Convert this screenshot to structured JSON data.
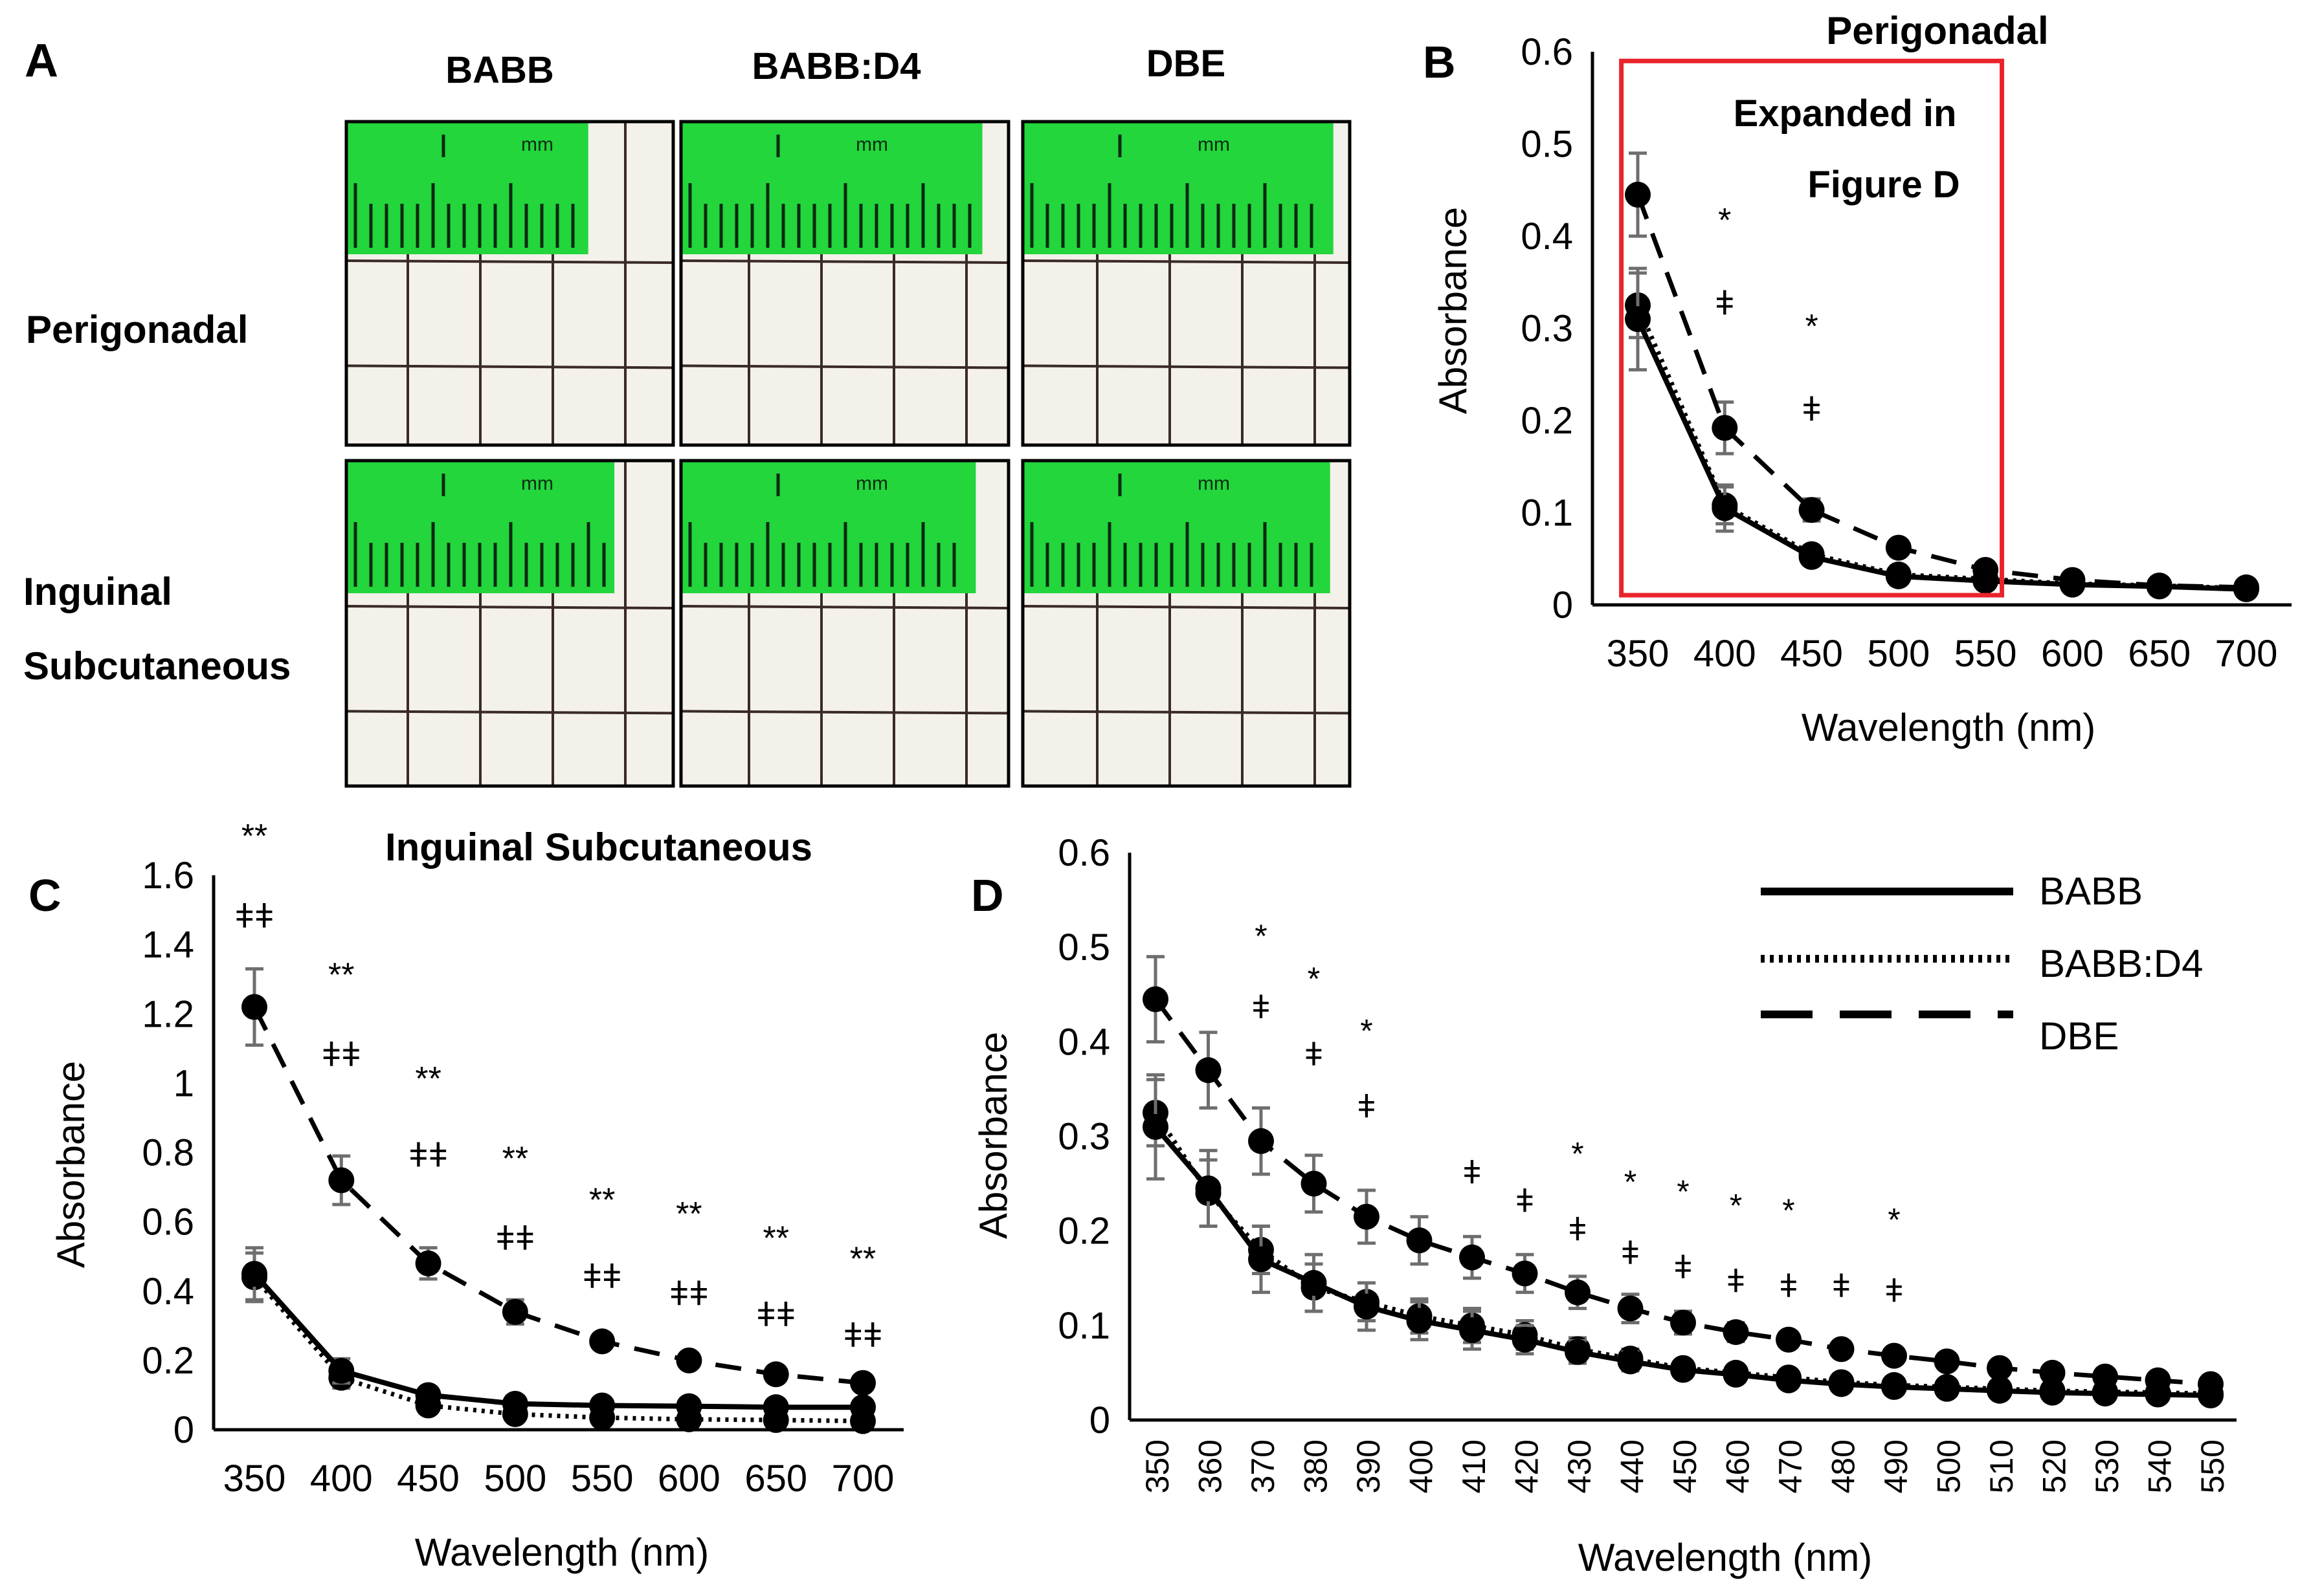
{
  "panelA": {
    "letter": "A",
    "columns": [
      "BABB",
      "BABB:D4",
      "DBE"
    ],
    "rows": [
      {
        "label_lines": [
          "Perigonadal"
        ]
      },
      {
        "label_lines": [
          "Inguinal",
          "Subcutaneous"
        ]
      }
    ],
    "ruler_mark": "mm"
  },
  "legend": {
    "entries": [
      {
        "name": "BABB",
        "style": "solid"
      },
      {
        "name": "BABB:D4",
        "style": "dotted"
      },
      {
        "name": "DBE",
        "style": "dashed"
      }
    ]
  },
  "colors": {
    "ink": "#000000",
    "errorbar": "#6e6e6e",
    "highlight": "#e8242b",
    "tissue_bg": "#f3f1ea",
    "ruler_green": "#22d63c"
  },
  "chart_data": [
    {
      "panel": "B",
      "type": "line",
      "title": "Perigonadal",
      "xlabel": "Wavelength (nm)",
      "ylabel": "Absorbance",
      "x": [
        350,
        400,
        450,
        500,
        550,
        600,
        650,
        700
      ],
      "xlim": [
        350,
        700
      ],
      "ylim": [
        0,
        0.6
      ],
      "yticks": [
        0,
        0.1,
        0.2,
        0.3,
        0.4,
        0.5,
        0.6
      ],
      "ytick_labels": [
        "0",
        "0.1",
        "0.2",
        "0.3",
        "0.4",
        "0.5",
        "0.6"
      ],
      "series": [
        {
          "name": "BABB",
          "style": "solid",
          "values": [
            0.31,
            0.105,
            0.052,
            0.031,
            0.026,
            0.022,
            0.02,
            0.017
          ],
          "errors": [
            0.055,
            0.025,
            0.008,
            0.005,
            0.004,
            0.003,
            0.003,
            0.003
          ]
        },
        {
          "name": "BABB:D4",
          "style": "dotted",
          "values": [
            0.325,
            0.108,
            0.055,
            0.033,
            0.028,
            0.023,
            0.021,
            0.018
          ],
          "errors": [
            0.035,
            0.02,
            0.006,
            0.005,
            0.004,
            0.003,
            0.003,
            0.003
          ]
        },
        {
          "name": "DBE",
          "style": "dashed",
          "values": [
            0.445,
            0.192,
            0.103,
            0.062,
            0.038,
            0.027,
            0.021,
            0.019
          ],
          "errors": [
            0.045,
            0.028,
            0.012,
            0.006,
            0.004,
            0.003,
            0.003,
            0.003
          ]
        }
      ],
      "annotations": [
        {
          "x": 400,
          "y": 0.405,
          "text": "*"
        },
        {
          "x": 400,
          "y": 0.315,
          "text": "ǂ"
        },
        {
          "x": 450,
          "y": 0.29,
          "text": "*"
        },
        {
          "x": 450,
          "y": 0.2,
          "text": "ǂ"
        }
      ],
      "highlight_box": {
        "x_range": [
          348,
          552
        ],
        "y_range": [
          0,
          0.59
        ],
        "label_lines": [
          "Expanded in",
          "Figure D"
        ]
      }
    },
    {
      "panel": "C",
      "type": "line",
      "title": "Inguinal Subcutaneous",
      "xlabel": "Wavelength (nm)",
      "ylabel": "Absorbance",
      "x": [
        350,
        400,
        450,
        500,
        550,
        600,
        650,
        700
      ],
      "xlim": [
        350,
        700
      ],
      "ylim": [
        0,
        1.6
      ],
      "yticks": [
        0,
        0.2,
        0.4,
        0.6,
        0.8,
        1,
        1.2,
        1.4,
        1.6
      ],
      "ytick_labels": [
        "0",
        "0.2",
        "0.4",
        "0.6",
        "0.8",
        "1",
        "1.2",
        "1.4",
        "1.6"
      ],
      "series": [
        {
          "name": "BABB",
          "style": "solid",
          "values": [
            0.45,
            0.17,
            0.1,
            0.075,
            0.07,
            0.068,
            0.065,
            0.065
          ],
          "errors": [
            0.075,
            0.035,
            0.02,
            0.015,
            0.012,
            0.01,
            0.01,
            0.01
          ]
        },
        {
          "name": "BABB:D4",
          "style": "dotted",
          "values": [
            0.44,
            0.15,
            0.07,
            0.045,
            0.035,
            0.03,
            0.028,
            0.025
          ],
          "errors": [
            0.07,
            0.03,
            0.015,
            0.012,
            0.01,
            0.01,
            0.01,
            0.01
          ]
        },
        {
          "name": "DBE",
          "style": "dashed",
          "values": [
            1.22,
            0.72,
            0.48,
            0.34,
            0.255,
            0.2,
            0.16,
            0.135
          ],
          "errors": [
            0.11,
            0.07,
            0.045,
            0.035,
            0.02,
            0.015,
            0.012,
            0.012
          ]
        }
      ],
      "annotations": [
        {
          "x": 350,
          "y": 1.68,
          "text": "**"
        },
        {
          "x": 350,
          "y": 1.45,
          "text": "ǂǂ"
        },
        {
          "x": 400,
          "y": 1.28,
          "text": "**"
        },
        {
          "x": 400,
          "y": 1.05,
          "text": "ǂǂ"
        },
        {
          "x": 450,
          "y": 0.98,
          "text": "**"
        },
        {
          "x": 450,
          "y": 0.76,
          "text": "ǂǂ"
        },
        {
          "x": 500,
          "y": 0.75,
          "text": "**"
        },
        {
          "x": 500,
          "y": 0.52,
          "text": "ǂǂ"
        },
        {
          "x": 550,
          "y": 0.63,
          "text": "**"
        },
        {
          "x": 550,
          "y": 0.41,
          "text": "ǂǂ"
        },
        {
          "x": 600,
          "y": 0.59,
          "text": "**"
        },
        {
          "x": 600,
          "y": 0.36,
          "text": "ǂǂ"
        },
        {
          "x": 650,
          "y": 0.52,
          "text": "**"
        },
        {
          "x": 650,
          "y": 0.3,
          "text": "ǂǂ"
        },
        {
          "x": 700,
          "y": 0.46,
          "text": "**"
        },
        {
          "x": 700,
          "y": 0.24,
          "text": "ǂǂ"
        }
      ]
    },
    {
      "panel": "D",
      "type": "line",
      "title": "",
      "xlabel": "Wavelength (nm)",
      "ylabel": "Absorbance",
      "x": [
        350,
        360,
        370,
        380,
        390,
        400,
        410,
        420,
        430,
        440,
        450,
        460,
        470,
        480,
        490,
        500,
        510,
        520,
        530,
        540,
        550
      ],
      "xlim": [
        350,
        550
      ],
      "ylim": [
        0,
        0.6
      ],
      "yticks": [
        0,
        0.1,
        0.2,
        0.3,
        0.4,
        0.5,
        0.6
      ],
      "ytick_labels": [
        "0",
        "0.1",
        "0.2",
        "0.3",
        "0.4",
        "0.5",
        "0.6"
      ],
      "series": [
        {
          "name": "BABB",
          "style": "solid",
          "values": [
            0.31,
            0.245,
            0.17,
            0.145,
            0.12,
            0.105,
            0.095,
            0.085,
            0.072,
            0.062,
            0.053,
            0.048,
            0.042,
            0.038,
            0.035,
            0.033,
            0.031,
            0.029,
            0.028,
            0.027,
            0.026
          ],
          "errors": [
            0.055,
            0.04,
            0.035,
            0.03,
            0.025,
            0.02,
            0.02,
            0.015,
            0.012,
            0.01,
            0.008,
            0.007,
            0.006,
            0.005,
            0.005,
            0.005,
            0.004,
            0.004,
            0.004,
            0.003,
            0.003
          ]
        },
        {
          "name": "BABB:D4",
          "style": "dotted",
          "values": [
            0.325,
            0.24,
            0.18,
            0.14,
            0.125,
            0.11,
            0.1,
            0.09,
            0.075,
            0.065,
            0.055,
            0.05,
            0.045,
            0.04,
            0.037,
            0.035,
            0.033,
            0.031,
            0.03,
            0.029,
            0.028
          ],
          "errors": [
            0.035,
            0.035,
            0.025,
            0.025,
            0.02,
            0.018,
            0.018,
            0.015,
            0.012,
            0.01,
            0.008,
            0.007,
            0.006,
            0.005,
            0.005,
            0.005,
            0.004,
            0.004,
            0.004,
            0.003,
            0.003
          ]
        },
        {
          "name": "DBE",
          "style": "dashed",
          "values": [
            0.445,
            0.37,
            0.295,
            0.25,
            0.215,
            0.19,
            0.172,
            0.155,
            0.135,
            0.118,
            0.103,
            0.093,
            0.085,
            0.075,
            0.068,
            0.062,
            0.055,
            0.05,
            0.046,
            0.042,
            0.038
          ],
          "errors": [
            0.045,
            0.04,
            0.035,
            0.03,
            0.028,
            0.025,
            0.022,
            0.02,
            0.017,
            0.015,
            0.012,
            0.01,
            0.008,
            0.007,
            0.006,
            0.006,
            0.005,
            0.005,
            0.004,
            0.004,
            0.004
          ]
        }
      ],
      "annotations": [
        {
          "x": 370,
          "y": 0.5,
          "text": "*"
        },
        {
          "x": 370,
          "y": 0.425,
          "text": "ǂ"
        },
        {
          "x": 380,
          "y": 0.455,
          "text": "*"
        },
        {
          "x": 380,
          "y": 0.375,
          "text": "ǂ"
        },
        {
          "x": 390,
          "y": 0.4,
          "text": "*"
        },
        {
          "x": 390,
          "y": 0.32,
          "text": "ǂ"
        },
        {
          "x": 410,
          "y": 0.25,
          "text": "ǂ"
        },
        {
          "x": 420,
          "y": 0.22,
          "text": "ǂ"
        },
        {
          "x": 430,
          "y": 0.27,
          "text": "*"
        },
        {
          "x": 430,
          "y": 0.19,
          "text": "ǂ"
        },
        {
          "x": 440,
          "y": 0.24,
          "text": "*"
        },
        {
          "x": 440,
          "y": 0.165,
          "text": "ǂ"
        },
        {
          "x": 450,
          "y": 0.23,
          "text": "*"
        },
        {
          "x": 450,
          "y": 0.15,
          "text": "ǂ"
        },
        {
          "x": 460,
          "y": 0.215,
          "text": "*"
        },
        {
          "x": 460,
          "y": 0.135,
          "text": "ǂ"
        },
        {
          "x": 470,
          "y": 0.21,
          "text": "*"
        },
        {
          "x": 470,
          "y": 0.13,
          "text": "ǂ"
        },
        {
          "x": 480,
          "y": 0.13,
          "text": "ǂ"
        },
        {
          "x": 490,
          "y": 0.2,
          "text": "*"
        },
        {
          "x": 490,
          "y": 0.125,
          "text": "ǂ"
        }
      ]
    }
  ]
}
